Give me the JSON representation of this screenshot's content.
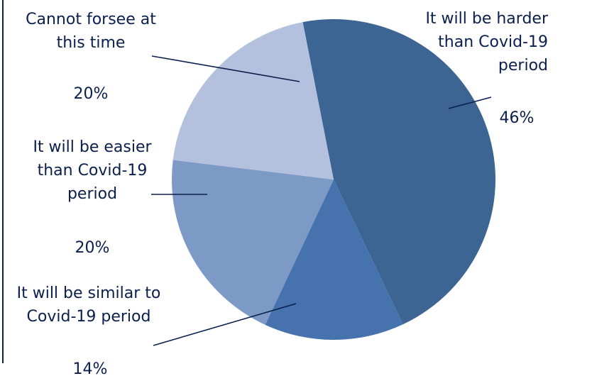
{
  "chart_data": {
    "type": "pie",
    "title": "",
    "slices": [
      {
        "label": [
          "It will be harder",
          "than Covid-19",
          "period"
        ],
        "value": 46,
        "value_label": "46%",
        "color": "#3c6593"
      },
      {
        "label": [
          "It will be similar to",
          "Covid-19 period"
        ],
        "value": 14,
        "value_label": "14%",
        "color": "#4672ad"
      },
      {
        "label": [
          "It will be easier",
          "than Covid-19",
          "period"
        ],
        "value": 20,
        "value_label": "20%",
        "color": "#7d9ac7"
      },
      {
        "label": [
          "Cannot forsee at",
          "this time"
        ],
        "value": 20,
        "value_label": "20%",
        "color": "#b3c1de"
      }
    ],
    "legend": "none"
  }
}
